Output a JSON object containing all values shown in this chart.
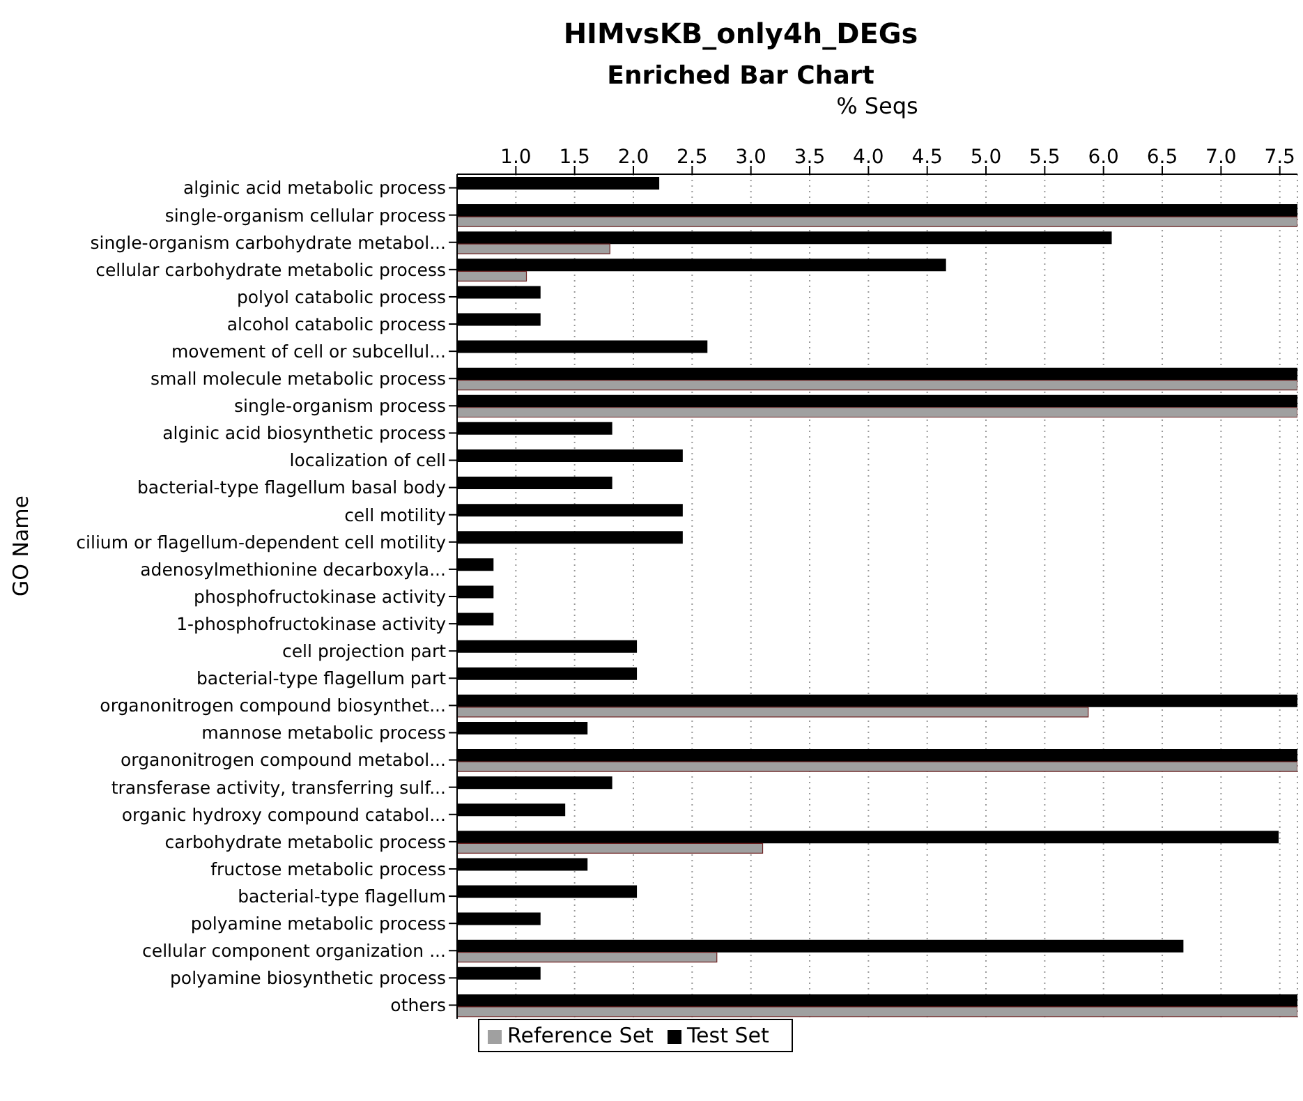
{
  "chart_data": {
    "type": "bar",
    "orientation": "horizontal",
    "title": "HIMvsKB_only4h_DEGs",
    "subtitle": "Enriched Bar Chart",
    "xlabel": "% Seqs",
    "ylabel": "GO Name",
    "categories": [
      "alginic acid metabolic process",
      "single-organism cellular process",
      "single-organism carbohydrate metabol...",
      "cellular carbohydrate metabolic process",
      "polyol catabolic process",
      "alcohol catabolic process",
      "movement of cell or subcellul...",
      "small molecule metabolic process",
      "single-organism process",
      "alginic acid biosynthetic process",
      "localization of cell",
      "bacterial-type flagellum basal body",
      "cell motility",
      "cilium or flagellum-dependent cell motility",
      "adenosylmethionine decarboxyla...",
      "phosphofructokinase activity",
      "1-phosphofructokinase activity",
      "cell projection part",
      "bacterial-type flagellum part",
      "organonitrogen compound biosynthet...",
      "mannose metabolic process",
      "organonitrogen compound metabol...",
      "transferase activity, transferring sulf...",
      "organic hydroxy compound catabol...",
      "carbohydrate metabolic process",
      "fructose metabolic process",
      "bacterial-type flagellum",
      "polyamine metabolic process",
      "cellular component organization ...",
      "polyamine biosynthetic process",
      "others"
    ],
    "series": [
      {
        "name": "Test Set",
        "color": "#000000",
        "values": [
          2.22,
          7.65,
          6.07,
          4.66,
          1.21,
          1.21,
          2.63,
          7.65,
          7.65,
          1.82,
          2.42,
          1.82,
          2.42,
          2.42,
          0.81,
          0.81,
          0.81,
          2.03,
          2.03,
          7.65,
          1.61,
          7.65,
          1.82,
          1.42,
          7.49,
          1.61,
          2.03,
          1.21,
          6.68,
          1.21,
          7.65
        ]
      },
      {
        "name": "Reference Set",
        "color": "#a0a0a0",
        "values": [
          null,
          7.65,
          1.8,
          1.09,
          null,
          null,
          null,
          7.65,
          7.65,
          null,
          null,
          null,
          null,
          null,
          null,
          null,
          null,
          null,
          null,
          5.87,
          null,
          7.65,
          null,
          null,
          3.1,
          null,
          null,
          null,
          2.71,
          null,
          7.65
        ]
      }
    ],
    "xlim": [
      0.5,
      7.65
    ],
    "xticks": [
      {
        "value": 1,
        "label": "1.0"
      },
      {
        "value": 1.5,
        "label": "1.5"
      },
      {
        "value": 2,
        "label": "2.0"
      },
      {
        "value": 2.5,
        "label": "2.5"
      },
      {
        "value": 3,
        "label": "3.0"
      },
      {
        "value": 3.5,
        "label": "3.5"
      },
      {
        "value": 4,
        "label": "4.0"
      },
      {
        "value": 4.5,
        "label": "4.5"
      },
      {
        "value": 5,
        "label": "5.0"
      },
      {
        "value": 5.5,
        "label": "5.5"
      },
      {
        "value": 6,
        "label": "6.0"
      },
      {
        "value": 6.5,
        "label": "6.5"
      },
      {
        "value": 7,
        "label": "7.0"
      },
      {
        "value": 7.5,
        "label": "7.5"
      }
    ],
    "grid": "x",
    "legend": "bottom"
  }
}
